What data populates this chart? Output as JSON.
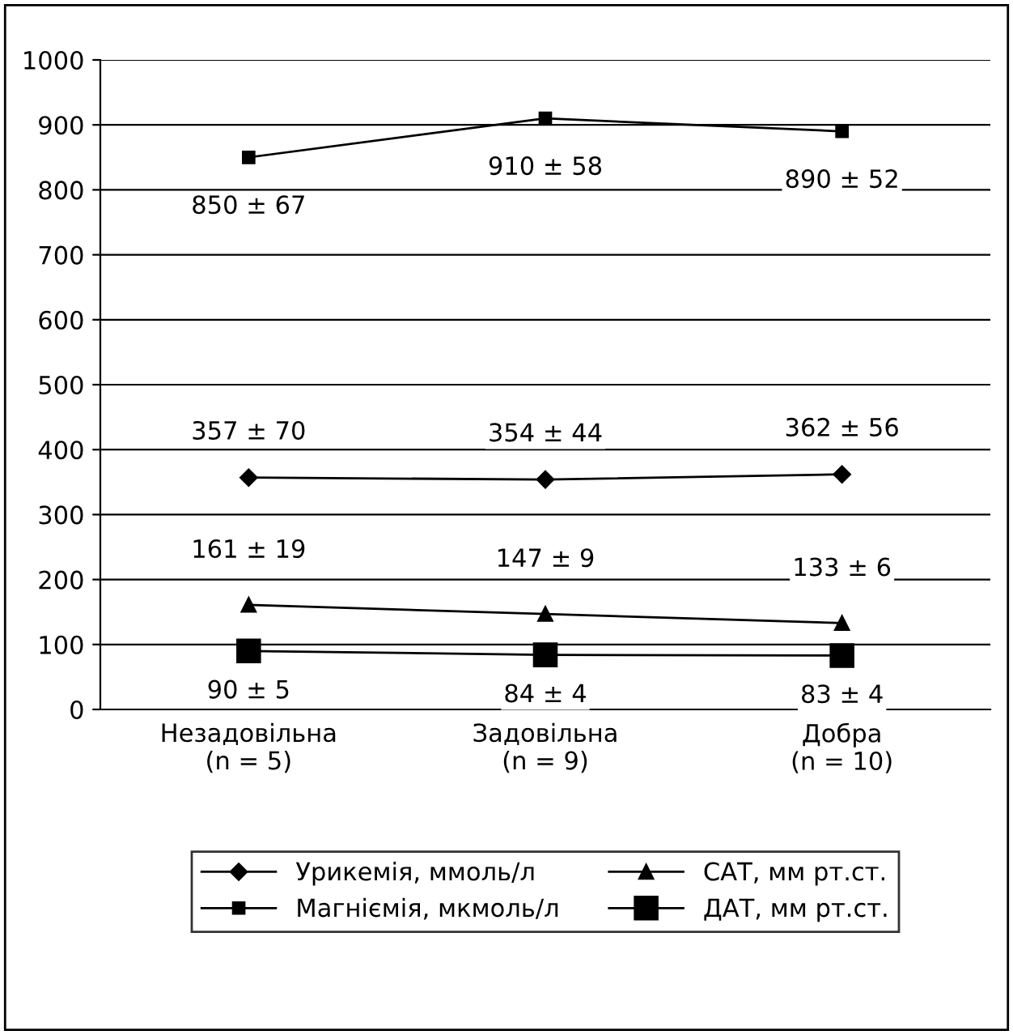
{
  "chart_data": {
    "type": "line",
    "categories": [
      "Незадовільна\n(n = 5)",
      "Задовільна\n(n = 9)",
      "Добра\n(n = 10)"
    ],
    "series": [
      {
        "name": "Урикемія, ммоль/л",
        "color": "#000000",
        "marker": "diamond",
        "values": [
          357,
          354,
          362
        ],
        "value_labels": [
          "357 ± 70",
          "354 ± 44",
          "362 ± 56"
        ]
      },
      {
        "name": "Магніємія, мкмоль/л",
        "color": "#000000",
        "marker": "square",
        "values": [
          850,
          910,
          890
        ],
        "value_labels": [
          "850 ± 67",
          "910 ± 58",
          "890 ± 52"
        ]
      },
      {
        "name": "САТ, мм рт.ст.",
        "color": "#000000",
        "marker": "triangle",
        "values": [
          161,
          147,
          133
        ],
        "value_labels": [
          "161 ± 19",
          "147 ± 9",
          "133 ± 6"
        ]
      },
      {
        "name": "ДАТ, мм рт.ст.",
        "color": "#000000",
        "marker": "square",
        "values": [
          90,
          84,
          83
        ],
        "value_labels": [
          "90 ± 5",
          "84 ± 4",
          "83 ± 4"
        ]
      }
    ],
    "ylim": [
      0,
      1000
    ],
    "yticks": [
      0,
      100,
      200,
      300,
      400,
      500,
      600,
      700,
      800,
      900,
      1000
    ],
    "grid": "y",
    "legend": "bottom",
    "line_style": "solid"
  }
}
